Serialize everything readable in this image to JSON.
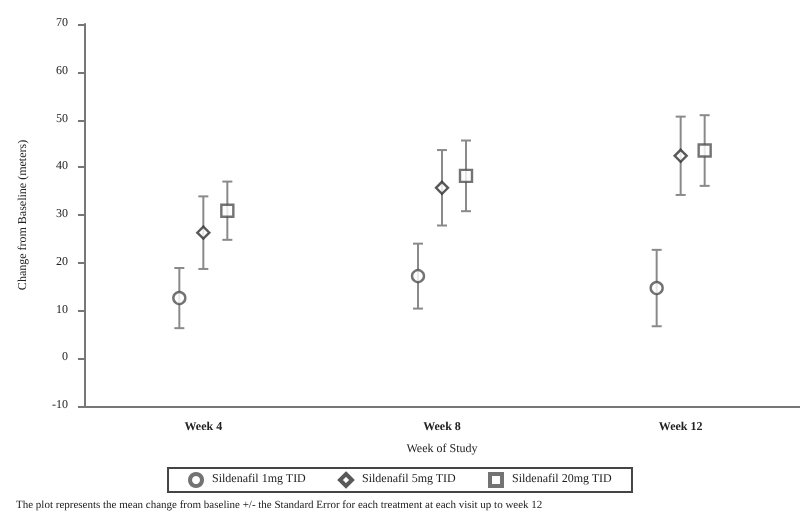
{
  "chart_data": {
    "type": "scatter",
    "xlabel": "Week of Study",
    "ylabel": "Change from Baseline (meters)",
    "categories": [
      "Week 4",
      "Week 8",
      "Week 12"
    ],
    "series": [
      {
        "name": "Sildenafil 1mg TID",
        "color": "#505050",
        "marker": "circle",
        "values": [
          12.6,
          17.2,
          14.7
        ],
        "errors": [
          6.3,
          6.8,
          8.0
        ]
      },
      {
        "name": "Sildenafil 5mg TID",
        "color": "#303030",
        "marker": "diamond",
        "values": [
          26.3,
          35.7,
          42.4
        ],
        "errors": [
          7.6,
          7.9,
          8.2
        ]
      },
      {
        "name": "Sildenafil 20mg TID",
        "color": "#505050",
        "marker": "square",
        "values": [
          30.9,
          38.2,
          43.5
        ],
        "errors": [
          6.1,
          7.4,
          7.4
        ]
      }
    ],
    "ylim": [
      -10,
      70
    ],
    "yticks": [
      -10,
      0,
      10,
      20,
      30,
      40,
      50,
      60,
      70
    ],
    "grid": false,
    "legend": "bottom",
    "annotations": [
      "The plot represents the mean change from baseline +/- the Standard Error for each treatment at each visit up to week 12"
    ]
  }
}
